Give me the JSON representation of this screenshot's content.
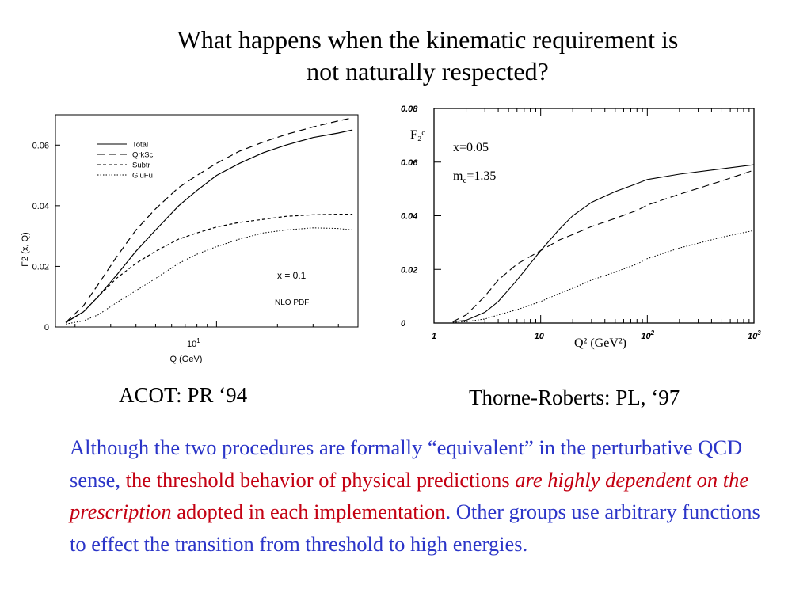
{
  "slide": {
    "title_line1": "What happens when the kinematic requirement is",
    "title_line2": "not naturally respected?",
    "caption_left": "ACOT: PR ‘94",
    "caption_right": "Thorne-Roberts: PL, ‘97",
    "paragraph": {
      "p1": "Although the two procedures are formally “equivalent” in the perturbative QCD sense, ",
      "p2": "the threshold behavior of physical predictions ",
      "p3": "are highly dependent on the prescription",
      "p4": " adopted in each implementation",
      "p5": ".  Other groups use arbitrary functions to effect the transition from threshold to high energies."
    },
    "colors": {
      "blue_text": "#2b35c8",
      "red_text": "#c40012"
    }
  },
  "chart_data": [
    {
      "type": "line",
      "title": "",
      "xlabel": "Q  (GeV)",
      "ylabel": "F2 (x, Q)",
      "x_scale": "log",
      "xlim": [
        1.6,
        50
      ],
      "ylim": [
        0,
        0.07
      ],
      "x_tick_label": "10",
      "x_tick_label_exp": "1",
      "x_tick_value": 10,
      "y_ticks": [
        0,
        0.02,
        0.04,
        0.06
      ],
      "y_tick_labels": [
        "0",
        "0.02",
        "0.04",
        "0.06"
      ],
      "legend_position": "top-left",
      "annotations": [
        "x = 0.1",
        "NLO PDF"
      ],
      "series": [
        {
          "name": "Total",
          "style": "solid",
          "x": [
            1.8,
            2.2,
            2.6,
            3.2,
            4,
            5,
            6.5,
            8,
            10,
            13,
            17,
            22,
            30,
            40,
            47
          ],
          "y": [
            0.0015,
            0.005,
            0.01,
            0.017,
            0.025,
            0.032,
            0.04,
            0.045,
            0.05,
            0.054,
            0.0575,
            0.06,
            0.0625,
            0.064,
            0.065
          ]
        },
        {
          "name": "QrkSc",
          "style": "dashed",
          "x": [
            1.8,
            2.2,
            2.6,
            3.2,
            4,
            5,
            6.5,
            8,
            10,
            13,
            17,
            22,
            30,
            40,
            47
          ],
          "y": [
            0.0015,
            0.007,
            0.014,
            0.023,
            0.032,
            0.039,
            0.046,
            0.05,
            0.054,
            0.058,
            0.061,
            0.0635,
            0.066,
            0.068,
            0.069
          ]
        },
        {
          "name": "Subtr",
          "style": "dashed-short",
          "x": [
            1.8,
            2.2,
            2.6,
            3.2,
            4,
            5,
            6.5,
            8,
            10,
            13,
            17,
            22,
            30,
            40,
            47
          ],
          "y": [
            0.0015,
            0.005,
            0.01,
            0.016,
            0.021,
            0.025,
            0.029,
            0.031,
            0.033,
            0.0345,
            0.0355,
            0.0365,
            0.037,
            0.0372,
            0.0372
          ]
        },
        {
          "name": "GluFu",
          "style": "dotted",
          "x": [
            1.8,
            2.2,
            2.6,
            3.2,
            4,
            5,
            6.5,
            8,
            10,
            13,
            17,
            22,
            30,
            40,
            47
          ],
          "y": [
            0.001,
            0.002,
            0.004,
            0.008,
            0.012,
            0.016,
            0.021,
            0.024,
            0.0265,
            0.029,
            0.031,
            0.032,
            0.0327,
            0.0325,
            0.032
          ]
        }
      ]
    },
    {
      "type": "line",
      "title": "",
      "xlabel": "Q² (GeV²)",
      "ylabel": "F₂ᶜ",
      "x_scale": "log",
      "xlim": [
        1,
        1000
      ],
      "ylim": [
        0,
        0.08
      ],
      "x_tick_labels": [
        {
          "value": 1,
          "base": "1",
          "exp": ""
        },
        {
          "value": 10,
          "base": "10",
          "exp": ""
        },
        {
          "value": 100,
          "base": "10",
          "exp": "2"
        },
        {
          "value": 1000,
          "base": "10",
          "exp": "3"
        }
      ],
      "y_ticks": [
        0,
        0.02,
        0.04,
        0.06,
        0.08
      ],
      "y_tick_labels": [
        "0",
        "0.02",
        "0.04",
        "0.06",
        "0.08"
      ],
      "annotations": [
        "x=0.05",
        "m",
        "c",
        "=1.35"
      ],
      "series": [
        {
          "style": "solid",
          "x": [
            1.5,
            2,
            3,
            4,
            6,
            10,
            15,
            20,
            30,
            50,
            80,
            100,
            200,
            500,
            1000
          ],
          "y": [
            0.0005,
            0.001,
            0.004,
            0.008,
            0.016,
            0.027,
            0.035,
            0.04,
            0.045,
            0.049,
            0.052,
            0.0535,
            0.0555,
            0.0575,
            0.059
          ]
        },
        {
          "style": "dashed",
          "x": [
            1.5,
            2,
            3,
            4,
            6,
            10,
            15,
            20,
            30,
            50,
            80,
            100,
            200,
            500,
            1000
          ],
          "y": [
            0.0005,
            0.003,
            0.01,
            0.016,
            0.022,
            0.027,
            0.031,
            0.033,
            0.036,
            0.039,
            0.042,
            0.044,
            0.048,
            0.053,
            0.057
          ]
        },
        {
          "style": "dotted",
          "x": [
            1.5,
            2,
            3,
            4,
            6,
            10,
            15,
            20,
            30,
            50,
            80,
            100,
            200,
            500,
            1000
          ],
          "y": [
            0.0002,
            0.0005,
            0.0015,
            0.003,
            0.005,
            0.008,
            0.011,
            0.013,
            0.016,
            0.019,
            0.022,
            0.024,
            0.028,
            0.032,
            0.0345
          ]
        }
      ]
    }
  ]
}
